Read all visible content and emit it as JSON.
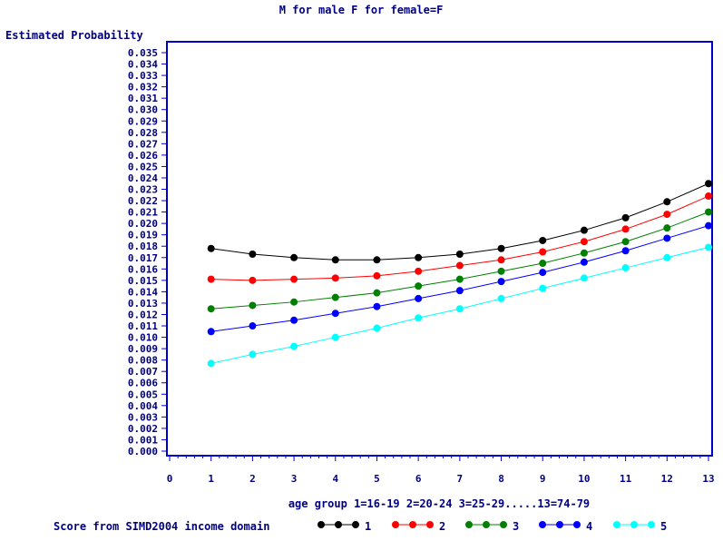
{
  "chart_data": {
    "type": "line",
    "title": "M for male F for female=F",
    "xlabel": "age group 1=16-19 2=20-24 3=25-29.....13=74-79",
    "ylabel": "Estimated Probability",
    "xlim": [
      0,
      13
    ],
    "ylim": [
      0,
      0.035
    ],
    "x_ticks": [
      "0",
      "1",
      "2",
      "3",
      "4",
      "5",
      "6",
      "7",
      "8",
      "9",
      "10",
      "11",
      "12",
      "13"
    ],
    "y_ticks": [
      "0.000",
      "0.001",
      "0.002",
      "0.003",
      "0.004",
      "0.005",
      "0.006",
      "0.007",
      "0.008",
      "0.009",
      "0.010",
      "0.011",
      "0.012",
      "0.013",
      "0.014",
      "0.015",
      "0.016",
      "0.017",
      "0.018",
      "0.019",
      "0.020",
      "0.021",
      "0.022",
      "0.023",
      "0.024",
      "0.025",
      "0.026",
      "0.027",
      "0.028",
      "0.029",
      "0.030",
      "0.031",
      "0.032",
      "0.033",
      "0.034",
      "0.035"
    ],
    "x": [
      1,
      2,
      3,
      4,
      5,
      6,
      7,
      8,
      9,
      10,
      11,
      12,
      13
    ],
    "legend_title": "Score from SIMD2004 income domain",
    "legend_position": "bottom",
    "grid": false,
    "series": [
      {
        "name": "1",
        "color": "#000000",
        "values": [
          0.0178,
          0.0173,
          0.017,
          0.0168,
          0.0168,
          0.017,
          0.0173,
          0.0178,
          0.0185,
          0.0194,
          0.0205,
          0.0219,
          0.0235
        ]
      },
      {
        "name": "2",
        "color": "#ff0000",
        "values": [
          0.0151,
          0.015,
          0.0151,
          0.0152,
          0.0154,
          0.0158,
          0.0163,
          0.0168,
          0.0175,
          0.0184,
          0.0195,
          0.0208,
          0.0224
        ]
      },
      {
        "name": "3",
        "color": "#008000",
        "values": [
          0.0125,
          0.0128,
          0.0131,
          0.0135,
          0.0139,
          0.0145,
          0.0151,
          0.0158,
          0.0165,
          0.0174,
          0.0184,
          0.0196,
          0.021
        ]
      },
      {
        "name": "4",
        "color": "#0000ff",
        "values": [
          0.0105,
          0.011,
          0.0115,
          0.0121,
          0.0127,
          0.0134,
          0.0141,
          0.0149,
          0.0157,
          0.0166,
          0.0176,
          0.0187,
          0.0198
        ]
      },
      {
        "name": "5",
        "color": "#00ffff",
        "values": [
          0.0077,
          0.0085,
          0.0092,
          0.01,
          0.0108,
          0.0117,
          0.0125,
          0.0134,
          0.0143,
          0.0152,
          0.0161,
          0.017,
          0.0179
        ]
      }
    ]
  }
}
